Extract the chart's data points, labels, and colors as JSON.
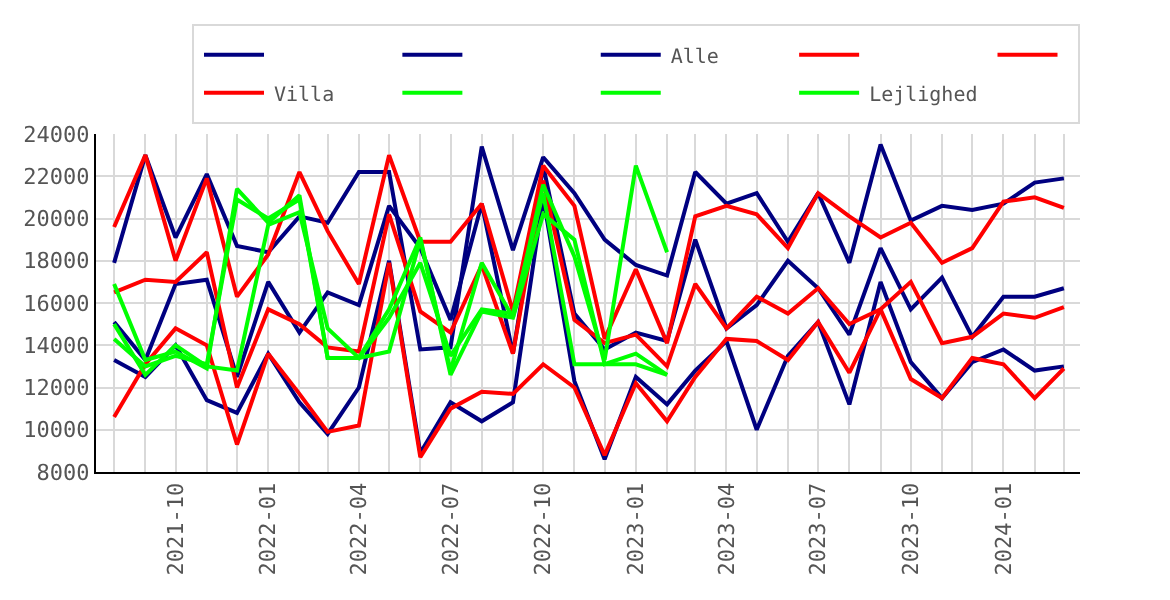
{
  "chart_data": {
    "type": "line",
    "x": [
      "2021-08",
      "2021-09",
      "2021-10",
      "2021-11",
      "2021-12",
      "2022-01",
      "2022-02",
      "2022-03",
      "2022-04",
      "2022-05",
      "2022-06",
      "2022-07",
      "2022-08",
      "2022-09",
      "2022-10",
      "2022-11",
      "2022-12",
      "2023-01",
      "2023-02",
      "2023-03",
      "2023-04",
      "2023-05",
      "2023-06",
      "2023-07",
      "2023-08",
      "2023-09",
      "2023-10",
      "2023-11",
      "2023-12",
      "2024-01",
      "2024-02",
      "2024-03"
    ],
    "series": [
      {
        "color": "#000080",
        "values": [
          17900,
          23000,
          19100,
          22100,
          18700,
          18400,
          20100,
          19800,
          22200,
          22200,
          13800,
          13900,
          23400,
          18500,
          22900,
          21200,
          19000,
          17800,
          17300,
          22200,
          20700,
          21200,
          18900,
          21200,
          17900,
          23500,
          19900,
          20600,
          20400,
          20700,
          21700,
          21900
        ]
      },
      {
        "color": "#000080",
        "values": [
          15100,
          13300,
          16900,
          17100,
          12500,
          17000,
          14600,
          16500,
          15900,
          20600,
          18600,
          15200,
          20700,
          13600,
          22500,
          15500,
          13800,
          14600,
          14200,
          19000,
          14800,
          15900,
          18000,
          16700,
          14500,
          18600,
          15700,
          17200,
          14400,
          16300,
          16300,
          16700
        ]
      },
      {
        "name": "Alle",
        "color": "#000080",
        "values": [
          13300,
          12500,
          14000,
          11400,
          10800,
          13600,
          11300,
          9800,
          12000,
          18000,
          8900,
          11300,
          10400,
          11300,
          21000,
          12300,
          8600,
          12500,
          11200,
          12800,
          14200,
          10000,
          13500,
          15100,
          11200,
          17000,
          13200,
          11500,
          13200,
          13800,
          12800,
          13000
        ]
      },
      {
        "color": "#ff0000",
        "values": [
          19600,
          23000,
          18000,
          21900,
          16300,
          18300,
          22200,
          19400,
          16900,
          23000,
          18900,
          18900,
          20700,
          15600,
          22500,
          20600,
          14300,
          17600,
          14100,
          20100,
          20600,
          20200,
          18600,
          21200,
          20100,
          19100,
          19800,
          17900,
          18600,
          20800,
          21000,
          20500
        ]
      },
      {
        "color": "#ff0000",
        "values": [
          16500,
          17100,
          17000,
          18400,
          12000,
          15700,
          15000,
          13900,
          13700,
          20200,
          15600,
          14600,
          17800,
          13600,
          21800,
          15200,
          14100,
          14500,
          13000,
          16900,
          14800,
          16300,
          15500,
          16700,
          15000,
          15700,
          17000,
          14100,
          14400,
          15500,
          15300,
          15800
        ]
      },
      {
        "name": "Villa",
        "color": "#ff0000",
        "values": [
          10600,
          13100,
          14800,
          14000,
          9300,
          13600,
          11700,
          9900,
          10200,
          17900,
          8700,
          11000,
          11800,
          11700,
          13100,
          12000,
          8800,
          12200,
          10400,
          12500,
          14300,
          14200,
          13300,
          15100,
          12700,
          15700,
          12400,
          11500,
          13400,
          13100,
          11500,
          12900
        ]
      },
      {
        "color": "#00ff00",
        "values": [
          16900,
          13300,
          13700,
          12900,
          21400,
          19800,
          21100,
          13400,
          13400,
          13700,
          19000,
          12800,
          17900,
          15300,
          21600,
          18200,
          13300,
          22500,
          18400,
          null,
          null,
          null,
          null,
          null,
          null,
          null,
          null,
          null,
          null,
          null,
          null,
          null
        ]
      },
      {
        "color": "#00ff00",
        "values": [
          15000,
          12600,
          14000,
          13000,
          12800,
          19700,
          20300,
          14800,
          13400,
          15700,
          19100,
          12600,
          15600,
          15300,
          20200,
          19000,
          13100,
          13600,
          12600,
          null,
          null,
          null,
          null,
          null,
          null,
          null,
          null,
          null,
          null,
          null,
          null,
          null
        ]
      },
      {
        "name": "Lejlighed",
        "color": "#00ff00",
        "values": [
          14300,
          13000,
          13500,
          13100,
          20900,
          20000,
          20900,
          13400,
          13400,
          15300,
          17900,
          13500,
          15700,
          15500,
          21200,
          13100,
          13100,
          13100,
          12600,
          null,
          null,
          null,
          null,
          null,
          null,
          null,
          null,
          null,
          null,
          null,
          null,
          null
        ]
      }
    ],
    "xlim": [
      "2021-07-14",
      "2024-03-17"
    ],
    "xticks": [
      {
        "value": "2021-08",
        "label": null
      },
      {
        "value": "2021-09",
        "label": null
      },
      {
        "value": "2021-10",
        "label": "2021-10"
      },
      {
        "value": "2021-11",
        "label": null
      },
      {
        "value": "2021-12",
        "label": null
      },
      {
        "value": "2022-01",
        "label": "2022-01"
      },
      {
        "value": "2022-02",
        "label": null
      },
      {
        "value": "2022-03",
        "label": null
      },
      {
        "value": "2022-04",
        "label": "2022-04"
      },
      {
        "value": "2022-05",
        "label": null
      },
      {
        "value": "2022-06",
        "label": null
      },
      {
        "value": "2022-07",
        "label": "2022-07"
      },
      {
        "value": "2022-08",
        "label": null
      },
      {
        "value": "2022-09",
        "label": null
      },
      {
        "value": "2022-10",
        "label": "2022-10"
      },
      {
        "value": "2022-11",
        "label": null
      },
      {
        "value": "2022-12",
        "label": null
      },
      {
        "value": "2023-01",
        "label": "2023-01"
      },
      {
        "value": "2023-02",
        "label": null
      },
      {
        "value": "2023-03",
        "label": null
      },
      {
        "value": "2023-04",
        "label": "2023-04"
      },
      {
        "value": "2023-05",
        "label": null
      },
      {
        "value": "2023-06",
        "label": null
      },
      {
        "value": "2023-07",
        "label": "2023-07"
      },
      {
        "value": "2023-08",
        "label": null
      },
      {
        "value": "2023-09",
        "label": null
      },
      {
        "value": "2023-10",
        "label": "2023-10"
      },
      {
        "value": "2023-11",
        "label": null
      },
      {
        "value": "2023-12",
        "label": null
      },
      {
        "value": "2024-01",
        "label": "2024-01"
      },
      {
        "value": "2024-02",
        "label": null
      },
      {
        "value": "2024-03",
        "label": null
      }
    ],
    "ylim": [
      8000,
      24000
    ],
    "yticks": [
      8000,
      10000,
      12000,
      14000,
      16000,
      18000,
      20000,
      22000,
      24000
    ],
    "grid": true,
    "legend": "top right",
    "marker": "none",
    "line_style": "solid"
  }
}
